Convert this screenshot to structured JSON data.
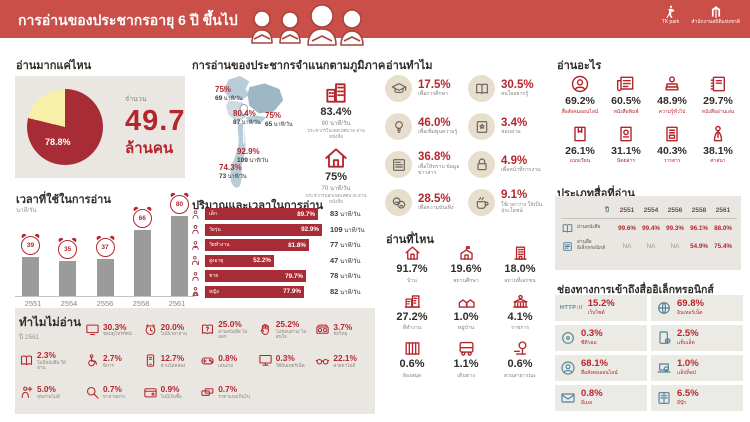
{
  "header": {
    "title": "การอ่านของประชากรอายุ 6 ปี ขึ้นไป",
    "logos": [
      "TK park",
      "สำนักงานสถิติแห่งชาติ"
    ]
  },
  "colors": {
    "banner": "#c94f48",
    "accent_red": "#b5262c",
    "bar_red": "#a82c35",
    "pie_yellow": "#f7f0a6",
    "panel_gray": "#eae7e2",
    "bar_gray": "#9b9b9b",
    "icon_blue": "#4e8299"
  },
  "how_much": {
    "heading": "อ่านมากแค่ไหน",
    "pie_pct": "78.8%",
    "amount_label": "จำนวน",
    "amount": "49.7",
    "unit": "ล้านคน"
  },
  "regions": {
    "heading": "การอ่านของประชากรจำแนกตามภูมิภาค",
    "areas": [
      {
        "key": "north",
        "pct": "75%",
        "time": "69",
        "time_unit": "นาที/วัน"
      },
      {
        "key": "central",
        "pct": "80.4%",
        "time": "87",
        "time_unit": "นาที/วัน"
      },
      {
        "key": "northeast",
        "pct": "75%",
        "time": "65",
        "time_unit": "นาที/วัน"
      },
      {
        "key": "bangkok",
        "pct": "92.9%",
        "time": "109",
        "time_unit": "นาที/วัน"
      },
      {
        "key": "south",
        "pct": "74.3%",
        "time": "73",
        "time_unit": "นาที/วัน"
      }
    ],
    "urban": {
      "icon": "city-buildings",
      "pct": "83.4%",
      "time": "90 นาที/วัน",
      "desc": "ประชากรในเขตเทศบาล อ่านหนังสือ"
    },
    "rural": {
      "icon": "home",
      "pct": "75%",
      "time": "70 นาที/วัน",
      "desc": "ประชากรนอกเขตเทศบาล อ่านหนังสือ"
    }
  },
  "why_read": {
    "heading": "อ่านทำไม",
    "items": [
      {
        "icon": "graduation-cap",
        "pct": "17.5%",
        "label": "เพื่อการศึกษา"
      },
      {
        "icon": "open-book",
        "pct": "30.5%",
        "label": "สนใจอยากรู้"
      },
      {
        "icon": "lightbulb",
        "pct": "46.0%",
        "label": "เพื่อเพิ่มพูนความรู้"
      },
      {
        "icon": "book-star",
        "pct": "3.4%",
        "label": "ชอบอ่าน"
      },
      {
        "icon": "news-document",
        "pct": "36.8%",
        "label": "เพื่อให้ทราบ ข้อมูลข่าวสาร"
      },
      {
        "icon": "padlock",
        "pct": "4.9%",
        "label": "เพื่อหน้าที่การงาน"
      },
      {
        "icon": "theater-masks",
        "pct": "28.5%",
        "label": "เพื่อความบันเทิง"
      },
      {
        "icon": "coffee-cup",
        "pct": "9.1%",
        "label": "ใช้เวลาว่าง ให้เป็นประโยชน์"
      }
    ]
  },
  "what_read": {
    "heading": "อ่านอะไร",
    "items": [
      {
        "icon": "social-profile",
        "pct": "69.2%",
        "label": "สื่อสังคมออนไลน์"
      },
      {
        "icon": "newspaper",
        "pct": "60.5%",
        "label": "หนังสือพิมพ์"
      },
      {
        "icon": "knowledge-books",
        "pct": "48.9%",
        "label": "ความรู้ทั่วไป"
      },
      {
        "icon": "leisure-book",
        "pct": "29.7%",
        "label": "หนังสืออ่านเล่น"
      },
      {
        "icon": "textbook",
        "pct": "26.1%",
        "label": "แบบเรียน"
      },
      {
        "icon": "magazine",
        "pct": "31.1%",
        "label": "นิตยสาร"
      },
      {
        "icon": "journal",
        "pct": "40.3%",
        "label": "วารสาร"
      },
      {
        "icon": "praying-person",
        "pct": "38.1%",
        "label": "ศาสนา"
      }
    ]
  },
  "time_spent": {
    "heading": "เวลาที่ใช้ในการอ่าน",
    "unit": "นาที/วัน",
    "years": [
      "2551",
      "2554",
      "2556",
      "2558",
      "2561"
    ],
    "values": [
      39,
      35,
      37,
      66,
      80
    ]
  },
  "amount_time": {
    "heading": "ปริมาณและเวลาในการอ่าน",
    "unit": "นาที/วัน",
    "rows": [
      {
        "icon": "child",
        "label": "เด็ก",
        "pct": 89.7,
        "pct_label": "89.7%",
        "minutes": "83"
      },
      {
        "icon": "teen",
        "label": "วัยรุ่น",
        "pct": 92.9,
        "pct_label": "92.9%",
        "minutes": "109"
      },
      {
        "icon": "worker",
        "label": "วัยทำงาน",
        "pct": 81.8,
        "pct_label": "81.8%",
        "minutes": "77"
      },
      {
        "icon": "elderly",
        "label": "สูงอายุ",
        "pct": 52.2,
        "pct_label": "52.2%",
        "minutes": "47"
      },
      {
        "icon": "male",
        "label": "ชาย",
        "pct": 79.7,
        "pct_label": "79.7%",
        "minutes": "78"
      },
      {
        "icon": "female",
        "label": "หญิง",
        "pct": 77.9,
        "pct_label": "77.9%",
        "minutes": "82"
      }
    ]
  },
  "where_read": {
    "heading": "อ่านที่ไหน",
    "items": [
      {
        "icon": "house",
        "pct": "91.7%",
        "label": "บ้าน"
      },
      {
        "icon": "school",
        "pct": "19.6%",
        "label": "สถานศึกษา"
      },
      {
        "icon": "private-building",
        "pct": "18.0%",
        "label": "สถานที่เอกชน"
      },
      {
        "icon": "office-building",
        "pct": "27.2%",
        "label": "ที่ทำงาน"
      },
      {
        "icon": "village-houses",
        "pct": "1.0%",
        "label": "หมู่บ้าน"
      },
      {
        "icon": "government-building",
        "pct": "4.1%",
        "label": "ราชการ"
      },
      {
        "icon": "bookshelf",
        "pct": "0.6%",
        "label": "ห้องสมุด"
      },
      {
        "icon": "bus",
        "pct": "1.1%",
        "label": "เดินทาง"
      },
      {
        "icon": "park-tree",
        "pct": "0.6%",
        "label": "สวนสาธารณะ"
      }
    ]
  },
  "media_types": {
    "heading": "ประเภทสื่อที่อ่าน",
    "year_col": "ปี",
    "years": [
      "2551",
      "2554",
      "2556",
      "2558",
      "2561"
    ],
    "rows": [
      {
        "icon": "open-book",
        "label": "อ่านหนังสือ",
        "values": [
          "99.6%",
          "99.4%",
          "99.3%",
          "96.1%",
          "88.0%"
        ]
      },
      {
        "icon": "ereader",
        "label": "อ่านสื่อ อิเล็กทรอนิกส์",
        "values": [
          "NA",
          "NA",
          "NA",
          "54.9%",
          "75.4%"
        ]
      }
    ]
  },
  "why_not": {
    "heading": "ทำไมไม่อ่าน",
    "year": "ปี 2561",
    "items": [
      {
        "icon": "tv",
        "pct": "30.3%",
        "label": "ชอบดูโทรทัศน์"
      },
      {
        "icon": "alarm-clock",
        "pct": "20.0%",
        "label": "ไม่มีเวลาอ่าน"
      },
      {
        "icon": "book-question",
        "pct": "25.0%",
        "label": "อ่านหนังสือ ไม่ออก"
      },
      {
        "icon": "stop-hand",
        "pct": "25.2%",
        "label": "ไม่ชอบอ่าน/ ไม่สนใจ"
      },
      {
        "icon": "boombox",
        "pct": "3.7%",
        "label": "ฟังวิทยุ"
      },
      {
        "icon": "no-book",
        "pct": "2.3%",
        "label": "ไม่มีหนังสือ ให้อ่าน"
      },
      {
        "icon": "wheelchair",
        "pct": "2.7%",
        "label": "พิการ"
      },
      {
        "icon": "slow-reading",
        "pct": "12.7%",
        "label": "อ่านไม่คล่อง"
      },
      {
        "icon": "gamepad",
        "pct": "0.8%",
        "label": "เล่นเกม"
      },
      {
        "icon": "monitor",
        "pct": "0.3%",
        "label": "ใช้อินเทอร์เน็ต"
      },
      {
        "icon": "glasses",
        "pct": "22.1%",
        "label": "สายตาไม่ดี"
      },
      {
        "icon": "poor-health",
        "pct": "5.0%",
        "label": "สุขภาพไม่ดี"
      },
      {
        "icon": "magnifier",
        "pct": "0.7%",
        "label": "หาอ่านยาก"
      },
      {
        "icon": "wallet",
        "pct": "0.9%",
        "label": "ไม่มีเงินซื้อ"
      },
      {
        "icon": "tickets",
        "pct": "0.7%",
        "label": "ราคาแพงเกินไป"
      }
    ]
  },
  "channels": {
    "heading": "ช่องทางการเข้าถึงสื่ออิเล็กทรอนิกส์",
    "items": [
      {
        "icon": "http",
        "pct": "15.2%",
        "label": "เว็บไซต์"
      },
      {
        "icon": "globe",
        "pct": "69.8%",
        "label": "อินเทอร์เน็ต"
      },
      {
        "icon": "cd",
        "pct": "0.3%",
        "label": "ซีดีรอม"
      },
      {
        "icon": "tablet",
        "pct": "2.5%",
        "label": "แท็บเล็ต"
      },
      {
        "icon": "social-profile",
        "pct": "68.1%",
        "label": "สื่อสังคมออนไลน์"
      },
      {
        "icon": "laptop",
        "pct": "1.0%",
        "label": "แล็ปท็อป"
      },
      {
        "icon": "envelope",
        "pct": "0.8%",
        "label": "อีเมล"
      },
      {
        "icon": "ebook",
        "pct": "6.5%",
        "label": "อีบุ๊ก"
      }
    ]
  },
  "chart_data": [
    {
      "type": "pie",
      "title": "อ่านมากแค่ไหน",
      "labels": [
        "อ่าน",
        "ไม่อ่าน"
      ],
      "values": [
        78.8,
        21.2
      ],
      "annotation": "จำนวน 49.7 ล้านคน"
    },
    {
      "type": "bar",
      "title": "เวลาที่ใช้ในการอ่าน",
      "ylabel": "นาที/วัน",
      "categories": [
        "2551",
        "2554",
        "2556",
        "2558",
        "2561"
      ],
      "values": [
        39,
        35,
        37,
        66,
        80
      ]
    },
    {
      "type": "bar",
      "title": "ปริมาณและเวลาในการอ่าน",
      "categories": [
        "เด็ก",
        "วัยรุ่น",
        "วัยทำงาน",
        "สูงอายุ",
        "ชาย",
        "หญิง"
      ],
      "series": [
        {
          "name": "ร้อยละที่อ่าน (%)",
          "values": [
            89.7,
            92.9,
            81.8,
            52.2,
            79.7,
            77.9
          ]
        },
        {
          "name": "นาที/วัน",
          "values": [
            83,
            109,
            77,
            47,
            78,
            82
          ]
        }
      ]
    },
    {
      "type": "table",
      "title": "ประเภทสื่อที่อ่าน",
      "columns": [
        "ปี",
        "2551",
        "2554",
        "2556",
        "2558",
        "2561"
      ],
      "rows": [
        [
          "อ่านหนังสือ",
          "99.6%",
          "99.4%",
          "99.3%",
          "96.1%",
          "88.0%"
        ],
        [
          "อ่านสื่ออิเล็กทรอนิกส์",
          "NA",
          "NA",
          "NA",
          "54.9%",
          "75.4%"
        ]
      ]
    },
    {
      "type": "bar",
      "title": "การอ่านของประชากรจำแนกตามภูมิภาค",
      "categories": [
        "เหนือ",
        "กลาง",
        "ตะวันออกเฉียงเหนือ",
        "กรุงเทพมหานคร",
        "ใต้"
      ],
      "series": [
        {
          "name": "ร้อยละที่อ่าน (%)",
          "values": [
            75,
            80.4,
            75,
            92.9,
            74.3
          ]
        },
        {
          "name": "นาที/วัน",
          "values": [
            69,
            87,
            65,
            109,
            73
          ]
        }
      ]
    }
  ]
}
